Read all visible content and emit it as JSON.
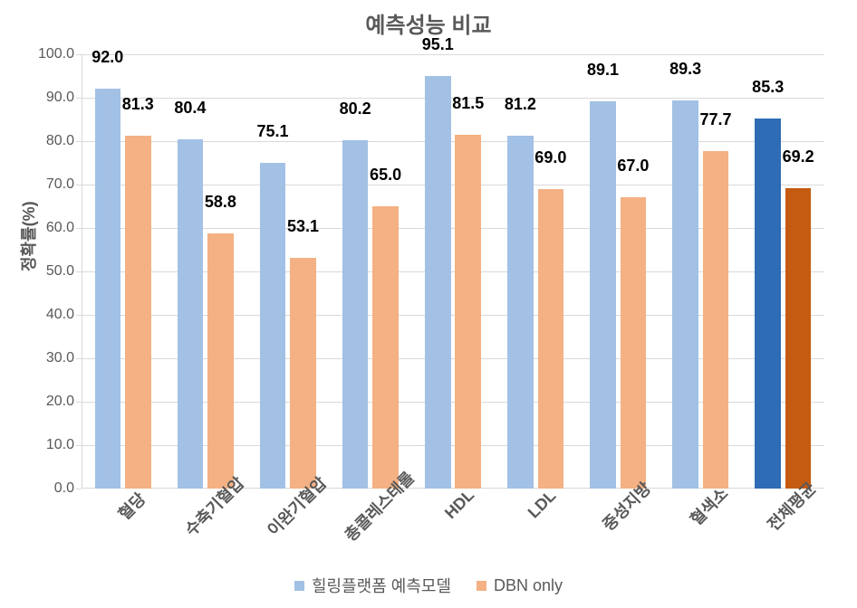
{
  "chart": {
    "type": "bar-grouped",
    "title": "예측성능 비교",
    "title_fontsize": 24,
    "title_color": "#595959",
    "y_axis_title": "정확률(%)",
    "y_axis_fontsize": 18,
    "label_fontsize": 18,
    "datalabel_fontsize": 18,
    "tick_fontsize": 16,
    "background_color": "#ffffff",
    "grid_color": "#d9d9d9",
    "axis_line_color": "#d9d9d9",
    "ylim_min": 0,
    "ylim_max": 100,
    "ytick_step": 10,
    "y_ticks": [
      "0.0",
      "10.0",
      "20.0",
      "30.0",
      "40.0",
      "50.0",
      "60.0",
      "70.0",
      "80.0",
      "90.0",
      "100.0"
    ],
    "categories": [
      "혈당",
      "수축기혈압",
      "이완기혈압",
      "총콜레스테롤",
      "HDL",
      "LDL",
      "중성지방",
      "혈색소",
      "전체평균"
    ],
    "series": [
      {
        "name": "힐링플랫폼 예측모델",
        "color_default": "#a2c1e5",
        "values": [
          92.0,
          80.4,
          75.1,
          80.2,
          95.1,
          81.2,
          89.1,
          89.3,
          85.3
        ],
        "labels": [
          "92.0",
          "80.4",
          "75.1",
          "80.2",
          "95.1",
          "81.2",
          "89.1",
          "89.3",
          "85.3"
        ],
        "colors": [
          "#a2c1e5",
          "#a2c1e5",
          "#a2c1e5",
          "#a2c1e5",
          "#a2c1e5",
          "#a2c1e5",
          "#a2c1e5",
          "#a2c1e5",
          "#2e6cb5"
        ]
      },
      {
        "name": "DBN only",
        "color_default": "#f4b183",
        "values": [
          81.3,
          58.8,
          53.1,
          65.0,
          81.5,
          69.0,
          67.0,
          77.7,
          69.2
        ],
        "labels": [
          "81.3",
          "58.8",
          "53.1",
          "65.0",
          "81.5",
          "69.0",
          "67.0",
          "77.7",
          "69.2"
        ],
        "colors": [
          "#f4b183",
          "#f4b183",
          "#f4b183",
          "#f4b183",
          "#f4b183",
          "#f4b183",
          "#f4b183",
          "#f4b183",
          "#c55a11"
        ]
      }
    ],
    "group_gap_ratio": 0.32,
    "bar_gap_ratio": 0.08
  }
}
